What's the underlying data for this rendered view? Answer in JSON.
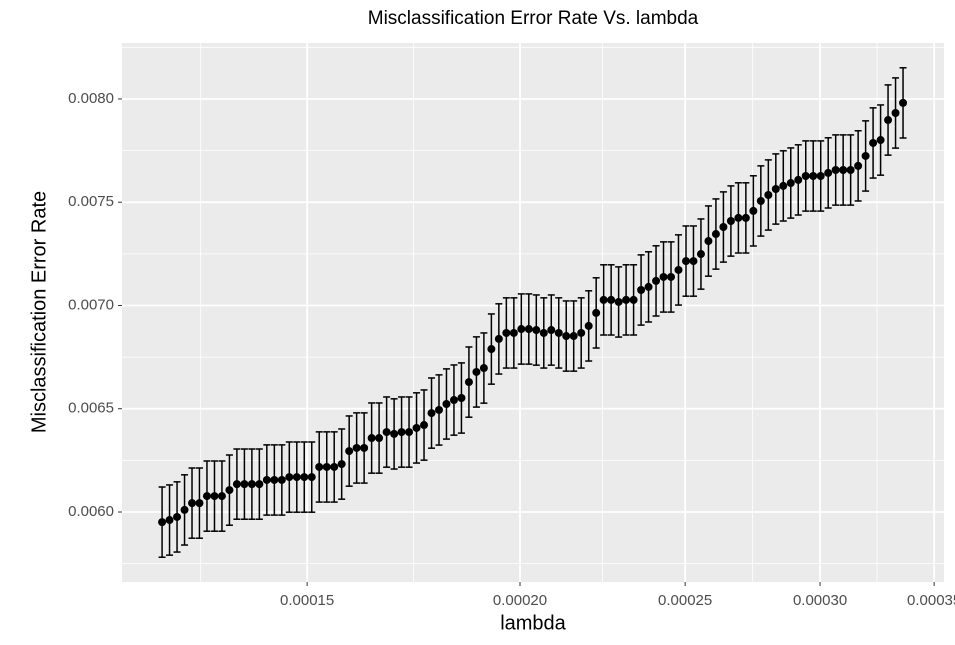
{
  "chart_data": {
    "type": "errorbar",
    "title": "Misclassification Error Rate Vs. lambda",
    "x_label": "lambda",
    "y_label": "Misclassification Error Rate",
    "xscale": "log",
    "grid": true,
    "color": "#000000",
    "xlim": [
      0.0001168,
      0.0003547
    ],
    "ylim": [
      0.005661,
      0.008271
    ],
    "xticks": [
      {
        "value": 0.00015,
        "label": "0.00015"
      },
      {
        "value": 0.0002,
        "label": "0.00020"
      },
      {
        "value": 0.00025,
        "label": "0.00025"
      },
      {
        "value": 0.0003,
        "label": "0.00030"
      },
      {
        "value": 0.00035,
        "label": "0.00035"
      }
    ],
    "yticks": [
      {
        "value": 0.006,
        "label": "0.0060"
      },
      0.0065,
      {
        "value": 0.007,
        "label": "0.0070"
      },
      0.0075,
      {
        "value": 0.008,
        "label": "0.0080"
      }
    ],
    "x": [
      0.0001233,
      0.00012455,
      0.00012582,
      0.0001271,
      0.00012839,
      0.00012969,
      0.00013101,
      0.00013235,
      0.00013369,
      0.00013505,
      0.00013642,
      0.00013781,
      0.00013921,
      0.00014062,
      0.00014205,
      0.0001435,
      0.00014496,
      0.00014643,
      0.00014792,
      0.00014942,
      0.00015094,
      0.00015247,
      0.00015403,
      0.00015559,
      0.00015717,
      0.00015877,
      0.00016038,
      0.00016201,
      0.00016366,
      0.00016532,
      0.00016701,
      0.00016871,
      0.00017042,
      0.00017215,
      0.0001739,
      0.00017567,
      0.00017746,
      0.00017926,
      0.00018108,
      0.00018292,
      0.00018478,
      0.00018666,
      0.00018856,
      0.00019047,
      0.00019241,
      0.00019436,
      0.00019634,
      0.00019834,
      0.00020035,
      0.00020239,
      0.00020445,
      0.00020653,
      0.00020863,
      0.00021075,
      0.00021289,
      0.00021505,
      0.00021724,
      0.00021945,
      0.00022168,
      0.00022393,
      0.00022621,
      0.00022851,
      0.00023083,
      0.00023318,
      0.00023555,
      0.00023794,
      0.00024036,
      0.0002428,
      0.00024527,
      0.00024776,
      0.00025029,
      0.00025283,
      0.0002554,
      0.000258,
      0.00026062,
      0.00026327,
      0.00026595,
      0.00026865,
      0.00027138,
      0.00027414,
      0.00027693,
      0.00027975,
      0.00028259,
      0.00028546,
      0.00028836,
      0.00029129,
      0.00029425,
      0.00029724,
      0.00030026,
      0.00030332,
      0.0003064,
      0.00030951,
      0.00031266,
      0.00031584,
      0.00031905,
      0.00032229,
      0.00032557,
      0.00032887,
      0.00033222,
      0.0003356
    ],
    "values": [
      0.005951,
      0.005961,
      0.005976,
      0.00601,
      0.006043,
      0.006043,
      0.006077,
      0.006077,
      0.006077,
      0.006106,
      0.006135,
      0.006135,
      0.006135,
      0.006135,
      0.006155,
      0.006155,
      0.006155,
      0.006169,
      0.006169,
      0.006169,
      0.006169,
      0.006218,
      0.006218,
      0.006218,
      0.006232,
      0.006295,
      0.00631,
      0.00631,
      0.006358,
      0.006358,
      0.006387,
      0.006378,
      0.006387,
      0.006387,
      0.006407,
      0.006421,
      0.006479,
      0.006494,
      0.006523,
      0.006542,
      0.006552,
      0.006629,
      0.006678,
      0.006697,
      0.006789,
      0.006838,
      0.006867,
      0.006867,
      0.006886,
      0.006886,
      0.006881,
      0.006867,
      0.006881,
      0.006867,
      0.006852,
      0.006852,
      0.006867,
      0.006901,
      0.006964,
      0.007027,
      0.007027,
      0.007017,
      0.007027,
      0.007027,
      0.007075,
      0.00709,
      0.007119,
      0.007138,
      0.007138,
      0.007172,
      0.007215,
      0.007215,
      0.007249,
      0.007312,
      0.007346,
      0.00738,
      0.007409,
      0.007424,
      0.007424,
      0.007458,
      0.007506,
      0.007535,
      0.007564,
      0.007579,
      0.007593,
      0.007608,
      0.007627,
      0.007627,
      0.007627,
      0.007642,
      0.007656,
      0.007656,
      0.007656,
      0.007676,
      0.007724,
      0.007787,
      0.007801,
      0.007898,
      0.007932,
      0.007981
    ],
    "errors": [
      0.00017,
      0.00017,
      0.00017,
      0.00017,
      0.00017,
      0.00017,
      0.00017,
      0.00017,
      0.00017,
      0.00017,
      0.00017,
      0.00017,
      0.00017,
      0.00017,
      0.00017,
      0.00017,
      0.00017,
      0.00017,
      0.00017,
      0.00017,
      0.00017,
      0.00017,
      0.00017,
      0.00017,
      0.00017,
      0.00017,
      0.00017,
      0.00017,
      0.00017,
      0.00017,
      0.00017,
      0.00017,
      0.00017,
      0.00017,
      0.00017,
      0.00017,
      0.00017,
      0.00017,
      0.00017,
      0.00017,
      0.00017,
      0.00017,
      0.00017,
      0.00017,
      0.00017,
      0.00017,
      0.00017,
      0.00017,
      0.00017,
      0.00017,
      0.00017,
      0.00017,
      0.00017,
      0.00017,
      0.00017,
      0.00017,
      0.00017,
      0.00017,
      0.00017,
      0.00017,
      0.00017,
      0.00017,
      0.00017,
      0.00017,
      0.00017,
      0.00017,
      0.00017,
      0.00017,
      0.00017,
      0.00017,
      0.00017,
      0.00017,
      0.00017,
      0.00017,
      0.00017,
      0.00017,
      0.00017,
      0.00017,
      0.00017,
      0.00017,
      0.00017,
      0.00017,
      0.00017,
      0.00017,
      0.00017,
      0.00017,
      0.00017,
      0.00017,
      0.00017,
      0.00017,
      0.00017,
      0.00017,
      0.00017,
      0.00017,
      0.00017,
      0.00017,
      0.00017,
      0.00017,
      0.00017,
      0.00017
    ]
  }
}
